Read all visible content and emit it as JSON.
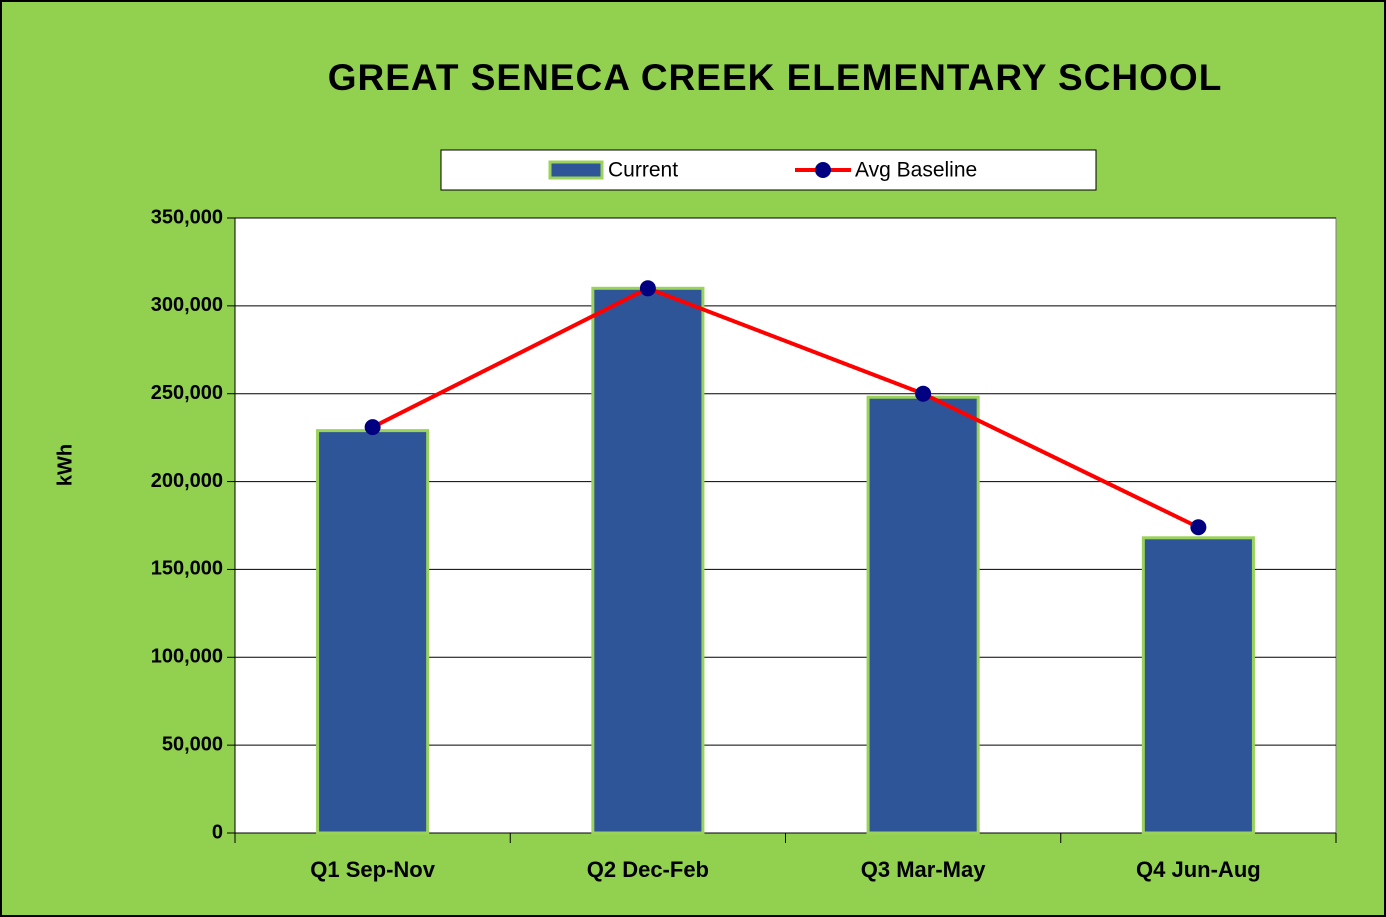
{
  "chart_data": {
    "type": "bar_line",
    "title": "GREAT SENECA CREEK ELEMENTARY SCHOOL",
    "ylabel": "kWh",
    "categories": [
      "Q1 Sep-Nov",
      "Q2 Dec-Feb",
      "Q3 Mar-May",
      "Q4 Jun-Aug"
    ],
    "series": [
      {
        "name": "Current",
        "type": "bar",
        "color": "#2e5597",
        "values": [
          229000,
          310000,
          248000,
          168000
        ]
      },
      {
        "name": "Avg Baseline",
        "type": "line",
        "color": "#ff0000",
        "marker_color": "#000080",
        "values": [
          231000,
          310000,
          250000,
          174000
        ]
      }
    ],
    "ylim": [
      0,
      350000
    ],
    "yticks": [
      0,
      {
        "value": 50000,
        "label": "50,000"
      },
      {
        "value": 100000,
        "label": "100,000"
      },
      {
        "value": 150000,
        "label": "150,000"
      },
      {
        "value": 200000,
        "label": "200,000"
      },
      {
        "value": 250000,
        "label": "250,000"
      },
      {
        "value": 300000,
        "label": "300,000"
      },
      {
        "value": 350000,
        "label": "350,000"
      }
    ],
    "grid": true,
    "legend": "top"
  }
}
